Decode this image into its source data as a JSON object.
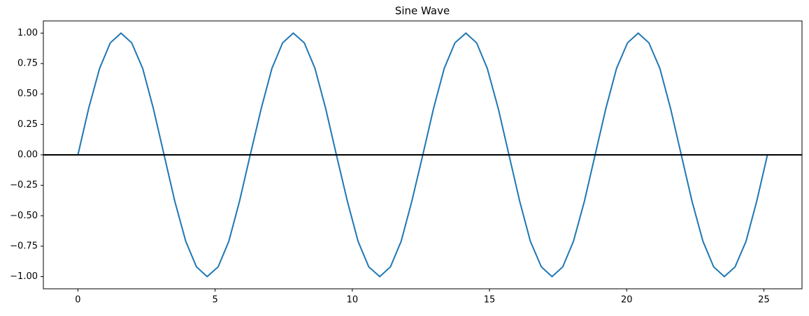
{
  "chart_data": {
    "type": "line",
    "title": "Sine Wave",
    "x": [
      0,
      0.39,
      0.79,
      1.18,
      1.57,
      1.96,
      2.36,
      2.75,
      3.14,
      3.53,
      3.93,
      4.32,
      4.71,
      5.11,
      5.5,
      5.89,
      6.28,
      6.68,
      7.07,
      7.46,
      7.85,
      8.25,
      8.64,
      9.03,
      9.42,
      9.82,
      10.21,
      10.6,
      11.0,
      11.39,
      11.78,
      12.17,
      12.57,
      12.96,
      13.35,
      13.74,
      14.14,
      14.53,
      14.92,
      15.32,
      15.71,
      16.1,
      16.49,
      16.89,
      17.28,
      17.67,
      18.06,
      18.46,
      18.85,
      19.24,
      19.63,
      20.03,
      20.42,
      20.81,
      21.21,
      21.6,
      21.99,
      22.38,
      22.78,
      23.17,
      23.56,
      23.95,
      24.35,
      24.74,
      25.13
    ],
    "series": [
      {
        "color": "#1f77b4",
        "values": [
          0,
          0.38,
          0.71,
          0.92,
          1,
          0.92,
          0.71,
          0.38,
          0,
          -0.38,
          -0.71,
          -0.92,
          -1,
          -0.92,
          -0.71,
          -0.38,
          0,
          0.38,
          0.71,
          0.92,
          1,
          0.92,
          0.71,
          0.38,
          0,
          -0.38,
          -0.71,
          -0.92,
          -1,
          -0.92,
          -0.71,
          -0.38,
          0,
          0.38,
          0.71,
          0.92,
          1,
          0.92,
          0.71,
          0.38,
          0,
          -0.38,
          -0.71,
          -0.92,
          -1,
          -0.92,
          -0.71,
          -0.38,
          0,
          0.38,
          0.71,
          0.92,
          1,
          0.92,
          0.71,
          0.38,
          0,
          -0.38,
          -0.71,
          -0.92,
          -1,
          -0.92,
          -0.71,
          -0.38,
          0
        ]
      }
    ],
    "hlines": [
      {
        "value": 0,
        "color": "#000000"
      }
    ],
    "xlim": [
      -1.26,
      26.39
    ],
    "xticks": [
      0,
      5,
      10,
      15,
      20,
      25
    ],
    "ylim": [
      -1.1,
      1.1
    ],
    "yticks": [
      {
        "value": -1,
        "label": "−1.00"
      },
      {
        "value": -0.75,
        "label": "−0.75"
      },
      {
        "value": -0.5,
        "label": "−0.50"
      },
      {
        "value": -0.25,
        "label": "−0.25"
      },
      {
        "value": 0,
        "label": "0.00"
      },
      {
        "value": 0.25,
        "label": "0.25"
      },
      {
        "value": 0.5,
        "label": "0.50"
      },
      {
        "value": 0.75,
        "label": "0.75"
      },
      {
        "value": 1,
        "label": "1.00"
      }
    ],
    "grid": false
  }
}
